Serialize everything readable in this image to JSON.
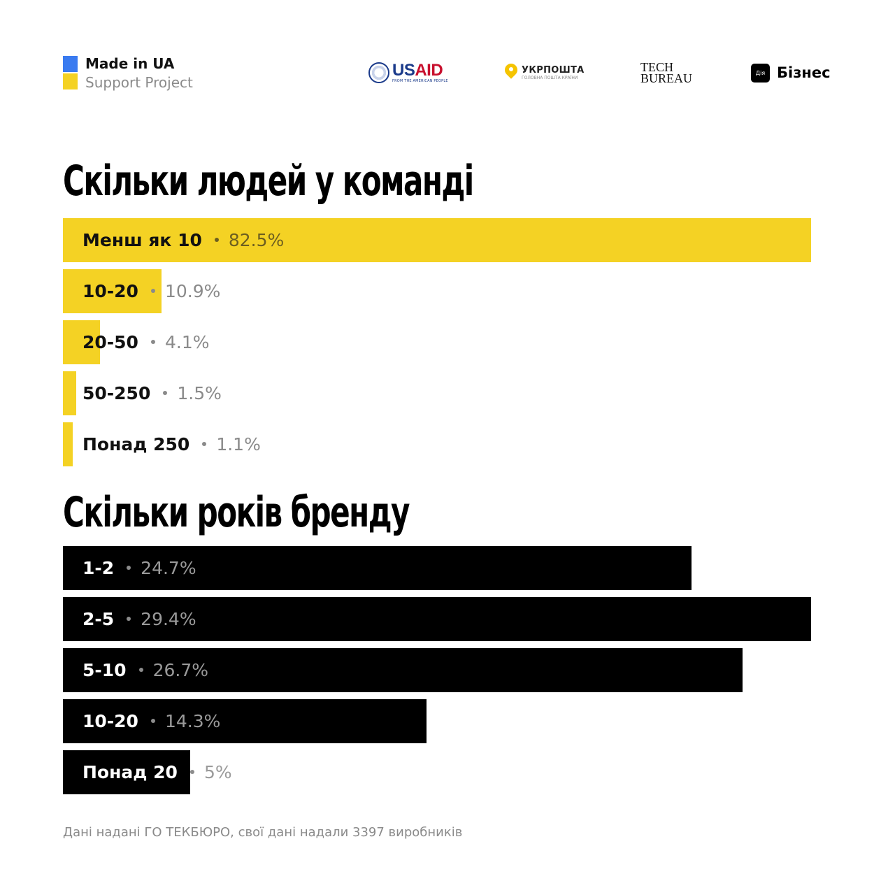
{
  "header": {
    "brand_line1": "Made in UA",
    "brand_line2": "Support Project",
    "partners": {
      "usaid": "USAID",
      "usaid_sub": "FROM THE AMERICAN PEOPLE",
      "ukrposhta": "УКРПОШТА",
      "ukrposhta_sub": "ГОЛОВНА ПОШТА КРАЇНИ",
      "techbureau_line1": "TECH",
      "techbureau_line2": "BUREAU",
      "diya_icon": "Дія",
      "diya_word": "Бізнес"
    }
  },
  "colors": {
    "yellow": "#f4d224",
    "blue": "#3a7bf0",
    "black": "#000000",
    "grey": "#8a8a8a"
  },
  "chart_data": [
    {
      "type": "bar",
      "orientation": "horizontal",
      "title": "Скільки людей у команді",
      "categories": [
        "Менш як 10",
        "10-20",
        "20-50",
        "50-250",
        "Понад 250"
      ],
      "values": [
        82.5,
        10.9,
        4.1,
        1.5,
        1.1
      ],
      "labels": [
        "82.5%",
        "10.9%",
        "4.1%",
        "1.5%",
        "1.1%"
      ],
      "color": "#f4d224",
      "max": 82.5
    },
    {
      "type": "bar",
      "orientation": "horizontal",
      "title": "Скільки років бренду",
      "categories": [
        "1-2",
        "2-5",
        "5-10",
        "10-20",
        "Понад 20"
      ],
      "values": [
        24.7,
        29.4,
        26.7,
        14.3,
        5
      ],
      "labels": [
        "24.7%",
        "29.4%",
        "26.7%",
        "14.3%",
        "5%"
      ],
      "color": "#000000",
      "max": 29.4
    }
  ],
  "footer": "Дані надані ГО ТЕКБЮРО, свої дані надали 3397 виробників"
}
